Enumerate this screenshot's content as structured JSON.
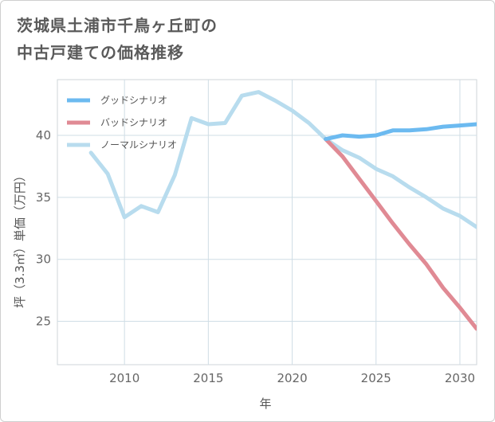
{
  "chart_data": {
    "type": "line",
    "title_lines": [
      "茨城県土浦市千鳥ヶ丘町の",
      "中古戸建ての価格推移"
    ],
    "xlabel": "年",
    "ylabel": "坪（3.3㎡）単価（万円）",
    "xlim": [
      2006,
      2031
    ],
    "ylim": [
      21.5,
      44.5
    ],
    "x_ticks": [
      2010,
      2015,
      2020,
      2025,
      2030
    ],
    "y_ticks": [
      25,
      30,
      35,
      40
    ],
    "grid": true,
    "legend_position": "top-left",
    "series": [
      {
        "name": "グッドシナリオ",
        "color": "#6cbaf0",
        "x": [
          2022,
          2023,
          2024,
          2025,
          2026,
          2027,
          2028,
          2029,
          2030,
          2031
        ],
        "values": [
          39.7,
          40.0,
          39.9,
          40.0,
          40.4,
          40.4,
          40.5,
          40.7,
          40.8,
          40.9
        ]
      },
      {
        "name": "バッドシナリオ",
        "color": "#e08a94",
        "x": [
          2022,
          2023,
          2024,
          2025,
          2026,
          2027,
          2028,
          2029,
          2030,
          2031
        ],
        "values": [
          39.7,
          38.3,
          36.5,
          34.7,
          32.9,
          31.2,
          29.6,
          27.7,
          26.1,
          24.4
        ]
      },
      {
        "name": "ノーマルシナリオ",
        "color": "#b8dcee",
        "x": [
          2008,
          2009,
          2010,
          2011,
          2012,
          2013,
          2014,
          2015,
          2016,
          2017,
          2018,
          2019,
          2020,
          2021,
          2022,
          2023,
          2024,
          2025,
          2026,
          2027,
          2028,
          2029,
          2030,
          2031
        ],
        "values": [
          38.6,
          36.9,
          33.4,
          34.3,
          33.8,
          36.8,
          41.4,
          40.9,
          41.0,
          43.2,
          43.5,
          42.8,
          42.0,
          41.0,
          39.7,
          38.8,
          38.2,
          37.3,
          36.7,
          35.8,
          35.0,
          34.1,
          33.5,
          32.6
        ]
      }
    ]
  }
}
